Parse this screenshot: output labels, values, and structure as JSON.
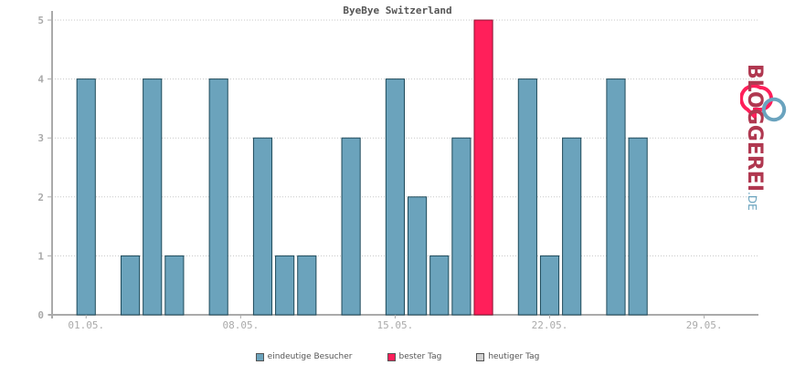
{
  "chart_data": {
    "type": "bar",
    "title": "ByeBye Switzerland",
    "x_start_day": 30,
    "categories": [
      "30.04.",
      "01.05.",
      "02.05.",
      "03.05.",
      "04.05.",
      "05.05.",
      "06.05.",
      "07.05.",
      "08.05.",
      "09.05.",
      "10.05.",
      "11.05.",
      "12.05.",
      "13.05.",
      "14.05.",
      "15.05.",
      "16.05.",
      "17.05.",
      "18.05.",
      "19.05.",
      "20.05.",
      "21.05.",
      "22.05.",
      "23.05.",
      "24.05.",
      "25.05.",
      "26.05.",
      "27.05.",
      "28.05.",
      "29.05.",
      "30.05.",
      "31.05."
    ],
    "tick_labels": [
      "01.05.",
      "08.05.",
      "15.05.",
      "22.05.",
      "29.05."
    ],
    "series": [
      {
        "name": "eindeutige Besucher",
        "color": "#6ba3bc",
        "values": [
          0,
          4,
          0,
          1,
          4,
          1,
          0,
          4,
          0,
          3,
          1,
          1,
          0,
          3,
          0,
          4,
          2,
          1,
          3,
          5,
          0,
          4,
          1,
          3,
          0,
          4,
          3,
          0,
          0,
          0,
          0,
          0
        ]
      }
    ],
    "highlight": {
      "name": "bester Tag",
      "category": "19.05.",
      "value": 5,
      "color": "#ff1f5a"
    },
    "ylim": [
      0,
      5
    ],
    "yticks": [
      0,
      1,
      2,
      3,
      4,
      5
    ],
    "grid": true,
    "legend": [
      {
        "label": "eindeutige Besucher",
        "color": "#6ba3bc"
      },
      {
        "label": "bester Tag",
        "color": "#ff1f5a"
      },
      {
        "label": "heutiger Tag",
        "color": "#d0d0d0"
      }
    ],
    "legend_position": "bottom"
  },
  "logo": {
    "text": "BLOGGEREI",
    "suffix": ".DE",
    "color": "#b03850",
    "accent": "#6aa3be"
  }
}
